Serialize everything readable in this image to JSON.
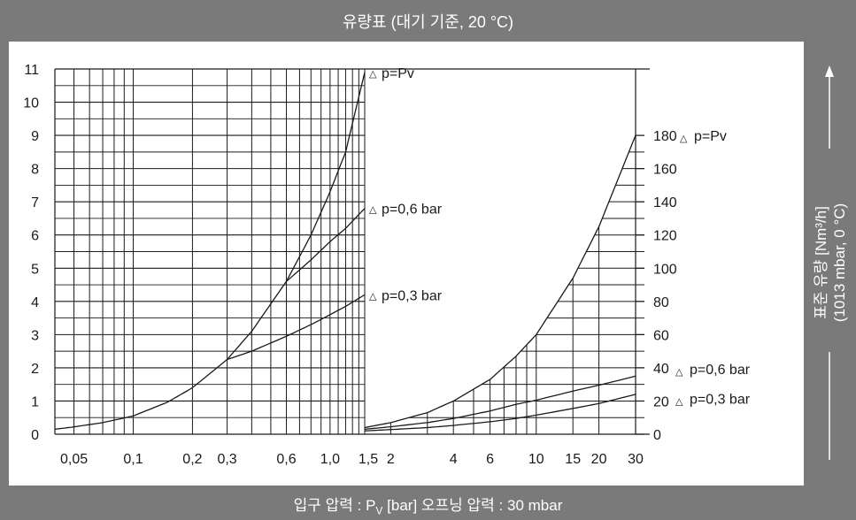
{
  "header": {
    "title": "유량표 (대기 기준, 20 °C)"
  },
  "footer": {
    "x_axis_label": "입구 압력 : P",
    "x_axis_sub": "V",
    "x_axis_rest": " [bar] 오프닝 압력 : 30 mbar"
  },
  "right_axis_title": {
    "line1": "표준 유량 [Nm³/h]",
    "line2": "(1013 mbar, 0 °C)"
  },
  "colors": {
    "background": "#7a7a7a",
    "panel": "#ffffff",
    "ink": "#1a1a1a"
  },
  "chart_data": [
    {
      "type": "line",
      "x_scale": "log",
      "xlim": [
        0.04,
        1.5
      ],
      "ylim": [
        0,
        11
      ],
      "x_ticks": [
        0.05,
        0.1,
        0.2,
        0.3,
        0.6,
        1.0,
        1.5
      ],
      "x_tick_labels": [
        "0,05",
        "0,1",
        "0,2",
        "0,3",
        "0,6",
        "1,0",
        "1,5"
      ],
      "y_ticks": [
        0,
        1,
        2,
        3,
        4,
        5,
        6,
        7,
        8,
        9,
        10,
        11
      ],
      "y_tick_labels": [
        "0",
        "1",
        "2",
        "3",
        "4",
        "5",
        "6",
        "7",
        "8",
        "9",
        "10",
        "11"
      ],
      "grid": true,
      "series": [
        {
          "name": "p=Pv",
          "x": [
            0.04,
            0.05,
            0.07,
            0.1,
            0.15,
            0.2,
            0.3,
            0.4,
            0.6,
            0.8,
            1.0,
            1.2,
            1.5
          ],
          "y": [
            0.15,
            0.22,
            0.35,
            0.55,
            0.97,
            1.4,
            2.25,
            3.1,
            4.6,
            6.0,
            7.3,
            8.5,
            10.9
          ]
        },
        {
          "name": "p=0,6 bar",
          "x": [
            0.6,
            0.8,
            1.0,
            1.2,
            1.5
          ],
          "y": [
            4.6,
            5.25,
            5.8,
            6.2,
            6.8
          ]
        },
        {
          "name": "p=0,3 bar",
          "x": [
            0.3,
            0.4,
            0.6,
            0.8,
            1.0,
            1.2,
            1.5
          ],
          "y": [
            2.25,
            2.5,
            2.95,
            3.3,
            3.6,
            3.85,
            4.2
          ]
        }
      ]
    },
    {
      "type": "line",
      "x_scale": "log",
      "xlim": [
        1.5,
        30
      ],
      "ylim": [
        0,
        220
      ],
      "x_ticks": [
        1.5,
        2,
        4,
        6,
        10,
        15,
        20,
        30
      ],
      "x_tick_labels": [
        "1,5",
        "2",
        "4",
        "6",
        "10",
        "15",
        "20",
        "30"
      ],
      "y_ticks": [
        0,
        20,
        40,
        60,
        80,
        100,
        120,
        140,
        160,
        180
      ],
      "y_tick_labels": [
        "0",
        "20",
        "40",
        "60",
        "80",
        "100",
        "120",
        "140",
        "160",
        "180"
      ],
      "grid": true,
      "series": [
        {
          "name": "p=Pv",
          "x": [
            1.5,
            2,
            3,
            4,
            6,
            8,
            10,
            15,
            20,
            30
          ],
          "y": [
            4,
            7,
            13,
            20,
            33,
            47,
            60,
            94,
            125,
            180
          ]
        },
        {
          "name": "p=0,6 bar",
          "x": [
            1.5,
            2,
            3,
            4,
            6,
            8,
            10,
            15,
            20,
            30
          ],
          "y": [
            3,
            4.5,
            7,
            9.5,
            14,
            18,
            20.5,
            26,
            29.5,
            35
          ]
        },
        {
          "name": "p=0,3 bar",
          "x": [
            1.5,
            2,
            3,
            4,
            6,
            8,
            10,
            15,
            20,
            30
          ],
          "y": [
            2,
            2.8,
            4,
            5.3,
            7.5,
            9.5,
            11.5,
            15.5,
            18.5,
            24
          ]
        }
      ]
    }
  ],
  "annotations": {
    "left": [
      "p=Pv",
      "p=0,6 bar",
      "p=0,3 bar"
    ],
    "right": [
      "p=Pv",
      "p=0,6 bar",
      "p=0,3 bar"
    ],
    "marker_symbol": "△"
  }
}
